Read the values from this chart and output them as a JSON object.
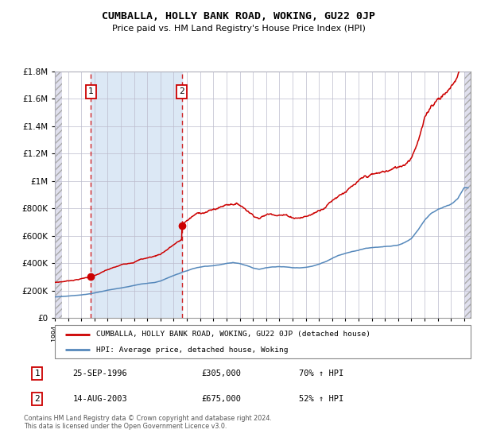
{
  "title": "CUMBALLA, HOLLY BANK ROAD, WOKING, GU22 0JP",
  "subtitle": "Price paid vs. HM Land Registry's House Price Index (HPI)",
  "legend_label_red": "CUMBALLA, HOLLY BANK ROAD, WOKING, GU22 0JP (detached house)",
  "legend_label_blue": "HPI: Average price, detached house, Woking",
  "footer": "Contains HM Land Registry data © Crown copyright and database right 2024.\nThis data is licensed under the Open Government Licence v3.0.",
  "transaction1_date": "25-SEP-1996",
  "transaction1_price": "£305,000",
  "transaction1_hpi": "70% ↑ HPI",
  "transaction2_date": "14-AUG-2003",
  "transaction2_price": "£675,000",
  "transaction2_hpi": "52% ↑ HPI",
  "ylim": [
    0,
    1800000
  ],
  "yticks": [
    0,
    200000,
    400000,
    600000,
    800000,
    1000000,
    1200000,
    1400000,
    1600000,
    1800000
  ],
  "xlim_start": 1994.0,
  "xlim_end": 2025.5,
  "red_color": "#cc0000",
  "blue_color": "#5588bb",
  "blue_fill_color": "#dce8f5",
  "grid_color": "#bbbbcc",
  "hatch_bg": "#e0e0ee",
  "marker1_x": 1996.73,
  "marker1_y": 305000,
  "marker2_x": 2003.62,
  "marker2_y": 675000,
  "vline1_x": 1996.73,
  "vline2_x": 2003.62,
  "hpi_years": [
    1994,
    1994.5,
    1995,
    1995.5,
    1996,
    1996.5,
    1997,
    1997.5,
    1998,
    1998.5,
    1999,
    1999.5,
    2000,
    2000.5,
    2001,
    2001.5,
    2002,
    2002.5,
    2003,
    2003.5,
    2004,
    2004.5,
    2005,
    2005.5,
    2006,
    2006.5,
    2007,
    2007.5,
    2008,
    2008.5,
    2009,
    2009.5,
    2010,
    2010.5,
    2011,
    2011.5,
    2012,
    2012.5,
    2013,
    2013.5,
    2014,
    2014.5,
    2015,
    2015.5,
    2016,
    2016.5,
    2017,
    2017.5,
    2018,
    2018.5,
    2019,
    2019.5,
    2020,
    2020.5,
    2021,
    2021.5,
    2022,
    2022.5,
    2023,
    2023.5,
    2024,
    2024.5,
    2025
  ],
  "hpi_vals": [
    155000,
    158000,
    162000,
    167000,
    172000,
    178000,
    185000,
    196000,
    207000,
    215000,
    223000,
    232000,
    242000,
    252000,
    258000,
    264000,
    275000,
    295000,
    315000,
    330000,
    345000,
    360000,
    370000,
    375000,
    380000,
    388000,
    398000,
    405000,
    400000,
    385000,
    368000,
    360000,
    370000,
    375000,
    378000,
    374000,
    368000,
    368000,
    372000,
    380000,
    395000,
    415000,
    438000,
    460000,
    478000,
    490000,
    500000,
    510000,
    515000,
    515000,
    520000,
    525000,
    530000,
    545000,
    575000,
    640000,
    710000,
    760000,
    790000,
    810000,
    830000,
    870000,
    950000
  ]
}
